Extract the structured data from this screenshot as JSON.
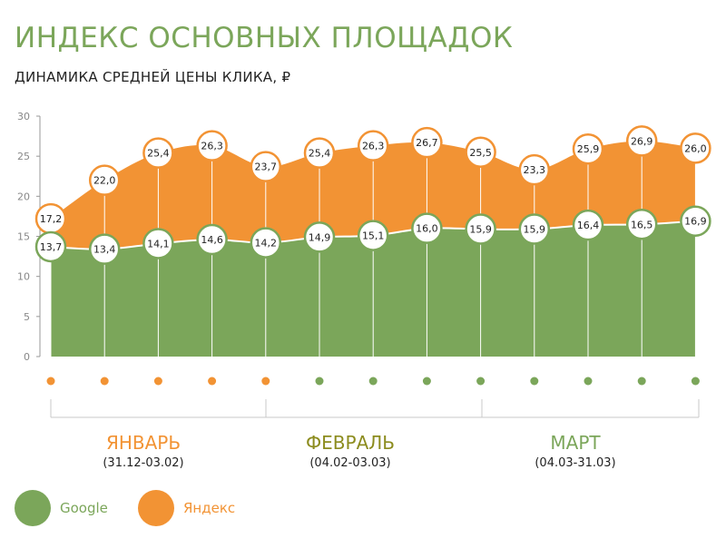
{
  "title": "ИНДЕКС ОСНОВНЫХ ПЛОЩАДОК",
  "subtitle": "ДИНАМИКА СРЕДНЕЙ ЦЕНЫ КЛИКА, ₽",
  "colors": {
    "google": "#7ba65a",
    "yandex": "#f29334",
    "title": "#7ba65a",
    "february": "#8c8c1e",
    "axis": "#999999"
  },
  "chart_data": {
    "type": "area",
    "stacked": false,
    "ylim": [
      0,
      30
    ],
    "yticks": [
      "0",
      "5",
      "10",
      "15",
      "20",
      "25",
      "30"
    ],
    "grid": false,
    "legend_position": "bottom-left",
    "series": [
      {
        "name": "Яндекс",
        "color": "#f29334",
        "values": [
          17.2,
          22.0,
          25.4,
          26.3,
          23.7,
          25.4,
          26.3,
          26.7,
          25.5,
          23.3,
          25.9,
          26.9,
          26.0
        ],
        "labels": [
          "17,2",
          "22,0",
          "25,4",
          "26,3",
          "23,7",
          "25,4",
          "26,3",
          "26,7",
          "25,5",
          "23,3",
          "25,9",
          "26,9",
          "26,0"
        ]
      },
      {
        "name": "Google",
        "color": "#7ba65a",
        "values": [
          13.7,
          13.4,
          14.1,
          14.6,
          14.2,
          14.9,
          15.1,
          16.0,
          15.9,
          15.9,
          16.4,
          16.5,
          16.9
        ],
        "labels": [
          "13,7",
          "13,4",
          "14,1",
          "14,6",
          "14,2",
          "14,9",
          "15,1",
          "16,0",
          "15,9",
          "15,9",
          "16,4",
          "16,5",
          "16,9"
        ]
      }
    ],
    "point_marker_colors": [
      "orange",
      "orange",
      "orange",
      "orange",
      "orange",
      "green",
      "green",
      "green",
      "green",
      "green",
      "green",
      "green",
      "green"
    ],
    "periods": [
      {
        "name": "ЯНВАРЬ",
        "range": "(31.12-03.02)",
        "color": "#f29334"
      },
      {
        "name": "ФЕВРАЛЬ",
        "range": "(04.02-03.03)",
        "color": "#8c8c1e"
      },
      {
        "name": "МАРТ",
        "range": "(04.03-31.03)",
        "color": "#7ba65a"
      }
    ]
  },
  "legend": [
    {
      "label": "Google",
      "color": "#7ba65a"
    },
    {
      "label": "Яндекс",
      "color": "#f29334"
    }
  ]
}
